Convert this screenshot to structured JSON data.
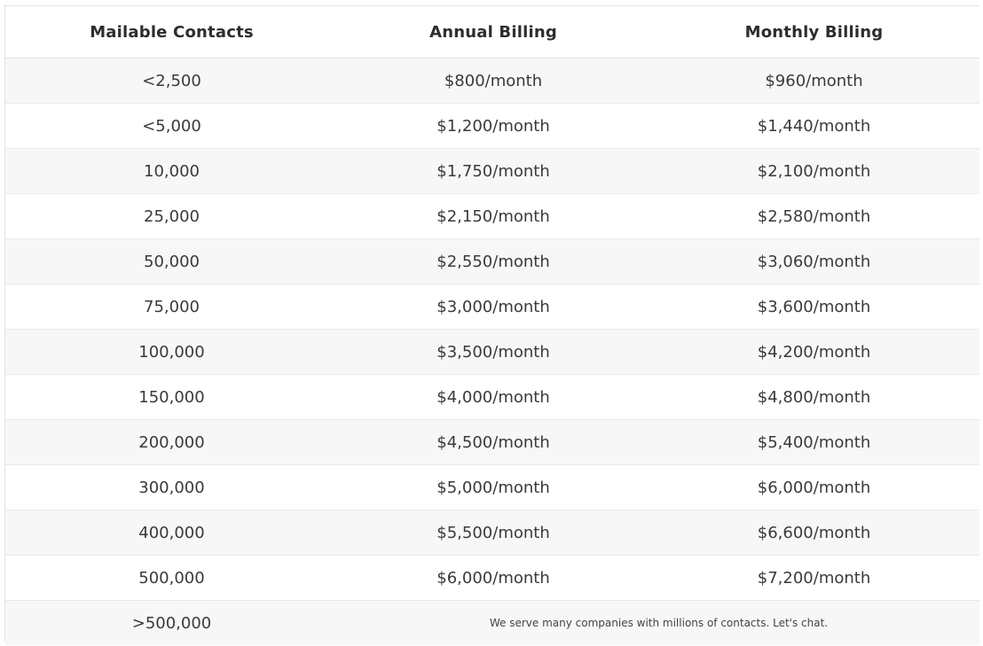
{
  "table": {
    "headers": [
      "Mailable Contacts",
      "Annual Billing",
      "Monthly Billing"
    ],
    "rows": [
      [
        "<2,500",
        "$800/month",
        "$960/month"
      ],
      [
        "<5,000",
        "$1,200/month",
        "$1,440/month"
      ],
      [
        "10,000",
        "$1,750/month",
        "$2,100/month"
      ],
      [
        "25,000",
        "$2,150/month",
        "$2,580/month"
      ],
      [
        "50,000",
        "$2,550/month",
        "$3,060/month"
      ],
      [
        "75,000",
        "$3,000/month",
        "$3,600/month"
      ],
      [
        "100,000",
        "$3,500/month",
        "$4,200/month"
      ],
      [
        "150,000",
        "$4,000/month",
        "$4,800/month"
      ],
      [
        "200,000",
        "$4,500/month",
        "$5,400/month"
      ],
      [
        "300,000",
        "$5,000/month",
        "$6,000/month"
      ],
      [
        "400,000",
        "$5,500/month",
        "$6,600/month"
      ],
      [
        "500,000",
        "$6,000/month",
        "$7,200/month"
      ]
    ],
    "last_row": {
      "contacts": ">500,000",
      "note": "We serve many companies with millions of contacts. Let's chat."
    }
  }
}
